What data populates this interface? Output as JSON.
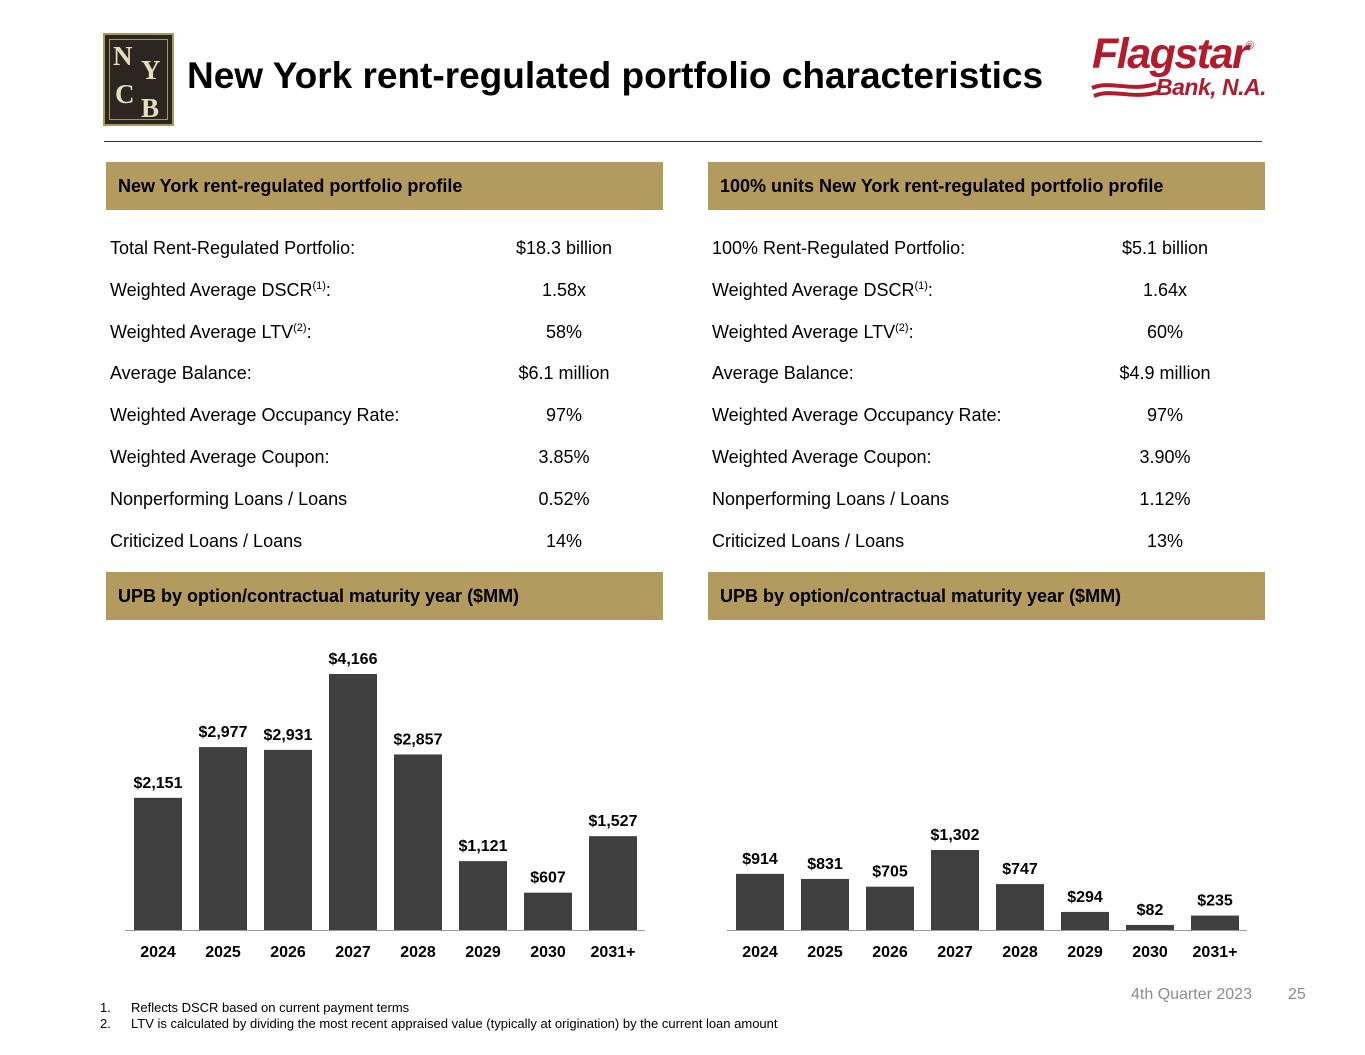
{
  "header": {
    "title": "New York rent-regulated portfolio characteristics",
    "logo_left_letters": [
      "N",
      "Y",
      "C",
      "B"
    ],
    "logo_right_word": "Flagstar",
    "logo_right_reg": "®",
    "logo_right_sub": "Bank, N.A."
  },
  "left_profile": {
    "heading": "New York rent-regulated portfolio profile",
    "rows": [
      {
        "label": "Total Rent-Regulated Portfolio:",
        "sup": "",
        "value": "$18.3 billion"
      },
      {
        "label": "Weighted Average DSCR",
        "sup": "(1)",
        "value": "1.58x"
      },
      {
        "label": "Weighted Average LTV",
        "sup": "(2)",
        "value": "58%"
      },
      {
        "label": "Average Balance:",
        "sup": "",
        "value": "$6.1 million"
      },
      {
        "label": "Weighted Average Occupancy Rate:",
        "sup": "",
        "value": "97%"
      },
      {
        "label": "Weighted Average Coupon:",
        "sup": "",
        "value": "3.85%"
      },
      {
        "label": "Nonperforming Loans / Loans",
        "sup": "",
        "value": "0.52%"
      },
      {
        "label": "Criticized Loans / Loans",
        "sup": "",
        "value": "14%"
      }
    ]
  },
  "right_profile": {
    "heading": "100% units New York rent-regulated portfolio profile",
    "rows": [
      {
        "label": "100% Rent-Regulated Portfolio:",
        "sup": "",
        "value": "$5.1 billion"
      },
      {
        "label": "Weighted Average DSCR",
        "sup": "(1)",
        "value": "1.64x"
      },
      {
        "label": "Weighted Average LTV",
        "sup": "(2)",
        "value": "60%"
      },
      {
        "label": "Average Balance:",
        "sup": "",
        "value": "$4.9 million"
      },
      {
        "label": "Weighted Average Occupancy Rate:",
        "sup": "",
        "value": "97%"
      },
      {
        "label": "Weighted Average Coupon:",
        "sup": "",
        "value": "3.90%"
      },
      {
        "label": "Nonperforming Loans / Loans",
        "sup": "",
        "value": "1.12%"
      },
      {
        "label": "Criticized Loans / Loans",
        "sup": "",
        "value": "13%"
      }
    ]
  },
  "chart_data": [
    {
      "type": "bar",
      "title": "UPB by option/contractual maturity year  ($MM)",
      "categories": [
        "2024",
        "2025",
        "2026",
        "2027",
        "2028",
        "2029",
        "2030",
        "2031+"
      ],
      "values": [
        2151,
        2977,
        2931,
        4166,
        2857,
        1121,
        607,
        1527
      ],
      "data_labels": [
        "$2,151",
        "$2,977",
        "$2,931",
        "$4,166",
        "$2,857",
        "$1,121",
        "$607",
        "$1,527"
      ],
      "xlabel": "",
      "ylabel": "",
      "ylim": [
        0,
        4166
      ],
      "bar_color": "#3f3f3f"
    },
    {
      "type": "bar",
      "title": "UPB by option/contractual maturity year  ($MM)",
      "categories": [
        "2024",
        "2025",
        "2026",
        "2027",
        "2028",
        "2029",
        "2030",
        "2031+"
      ],
      "values": [
        914,
        831,
        705,
        1302,
        747,
        294,
        82,
        235
      ],
      "data_labels": [
        "$914",
        "$831",
        "$705",
        "$1,302",
        "$747",
        "$294",
        "$82",
        "$235"
      ],
      "xlabel": "",
      "ylabel": "",
      "ylim": [
        0,
        4166
      ],
      "bar_color": "#3f3f3f"
    }
  ],
  "footnotes": [
    {
      "num": "1.",
      "text": "Reflects DSCR based on current payment terms"
    },
    {
      "num": "2.",
      "text": "LTV is calculated by dividing the most recent appraised value (typically at origination) by the current loan amount"
    }
  ],
  "footer": {
    "quarter": "4th Quarter 2023",
    "page": "25"
  }
}
